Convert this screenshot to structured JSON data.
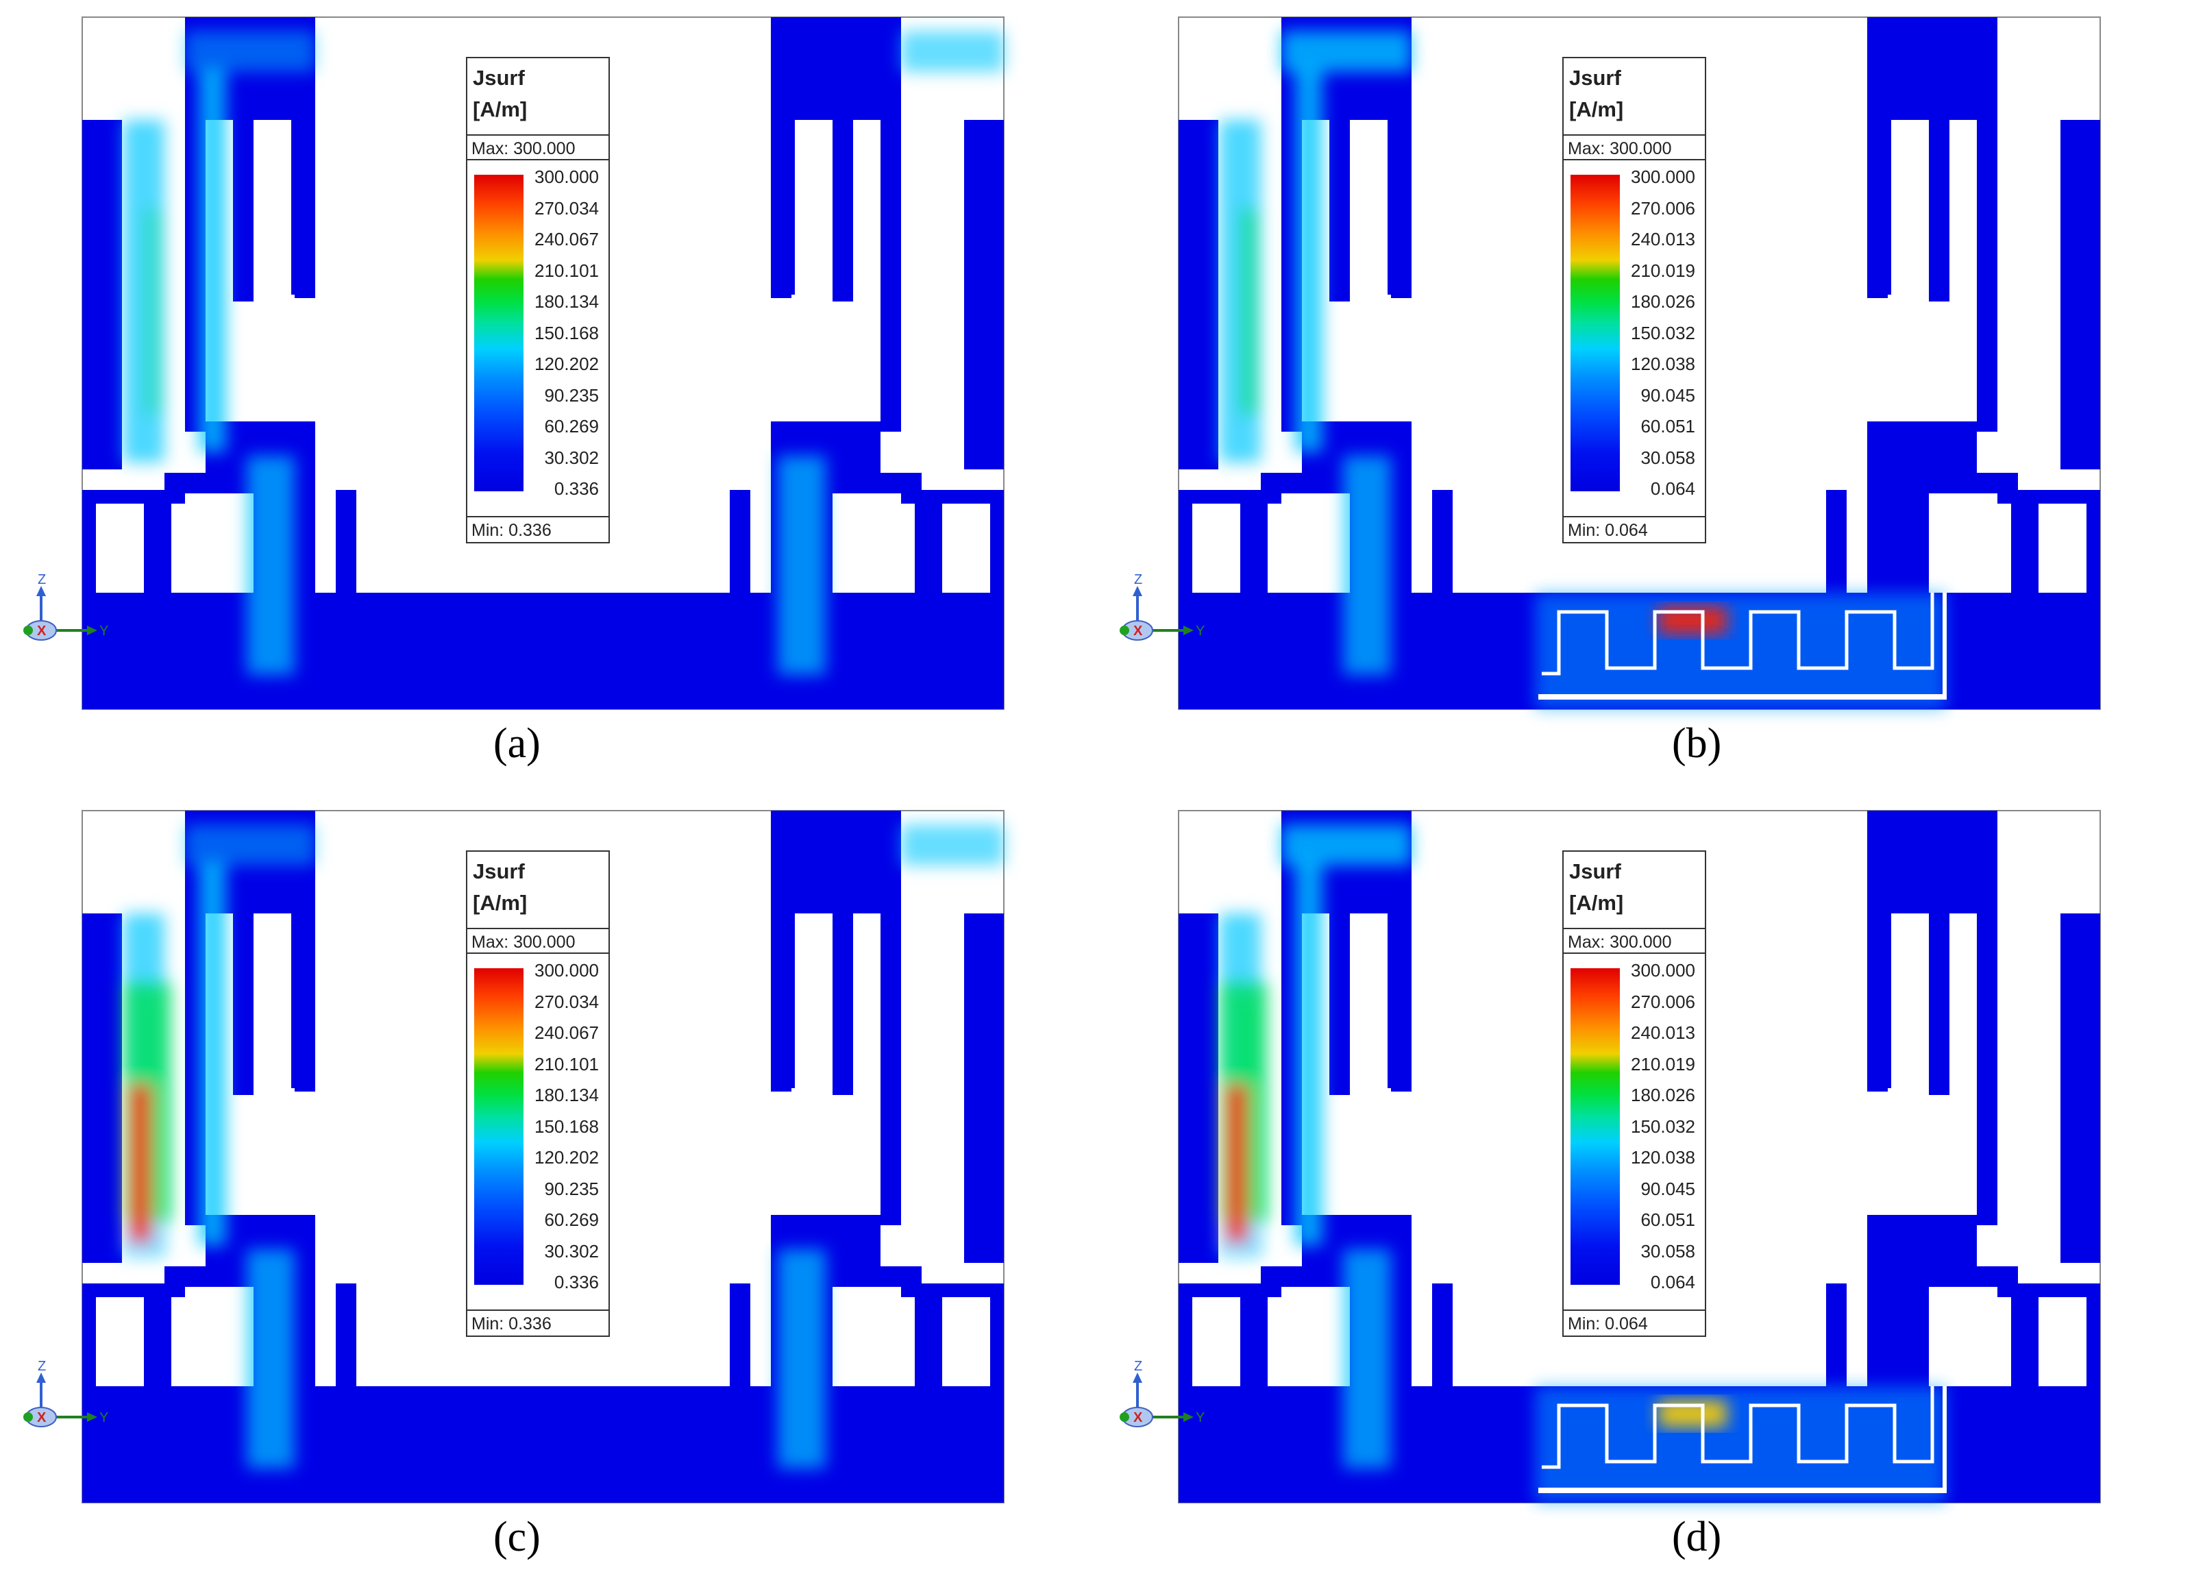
{
  "panels": [
    {
      "id": "a",
      "caption": "(a)",
      "legend": {
        "title_line1": "Jsurf",
        "title_line2": "[A/m]",
        "max": "Max: 300.000",
        "min": "Min:   0.336",
        "ticks": [
          "300.000",
          "270.034",
          "240.067",
          "210.101",
          "180.134",
          "150.168",
          "120.202",
          "90.235",
          "60.269",
          "30.302",
          "0.336"
        ]
      },
      "hot_side": "left",
      "filter": false
    },
    {
      "id": "b",
      "caption": "(b)",
      "legend": {
        "title_line1": "Jsurf",
        "title_line2": "[A/m]",
        "max": "Max: 300.000",
        "min": "Min:   0.064",
        "ticks": [
          "300.000",
          "270.006",
          "240.013",
          "210.019",
          "180.026",
          "150.032",
          "120.038",
          "90.045",
          "60.051",
          "30.058",
          "0.064"
        ]
      },
      "hot_side": "left",
      "filter": true
    },
    {
      "id": "c",
      "caption": "(c)",
      "legend": {
        "title_line1": "Jsurf",
        "title_line2": "[A/m]",
        "max": "Max: 300.000",
        "min": "Min:   0.336",
        "ticks": [
          "300.000",
          "270.034",
          "240.067",
          "210.101",
          "180.134",
          "150.168",
          "120.202",
          "90.235",
          "60.269",
          "30.302",
          "0.336"
        ]
      },
      "hot_side": "left",
      "filter": false
    },
    {
      "id": "d",
      "caption": "(d)",
      "legend": {
        "title_line1": "Jsurf",
        "title_line2": "[A/m]",
        "max": "Max: 300.000",
        "min": "Min:   0.064",
        "ticks": [
          "300.000",
          "270.006",
          "240.013",
          "210.019",
          "180.026",
          "150.032",
          "120.038",
          "90.045",
          "60.051",
          "30.058",
          "0.064"
        ]
      },
      "hot_side": "left",
      "filter": true
    }
  ],
  "axis_labels": {
    "z": "Z",
    "x": "X",
    "y": "Y"
  },
  "colors": {
    "field_low": "#0000e6",
    "field_mid": "#00c8ff",
    "field_high": "#00e060",
    "hot": "#ff2000",
    "outline": "#888888"
  }
}
